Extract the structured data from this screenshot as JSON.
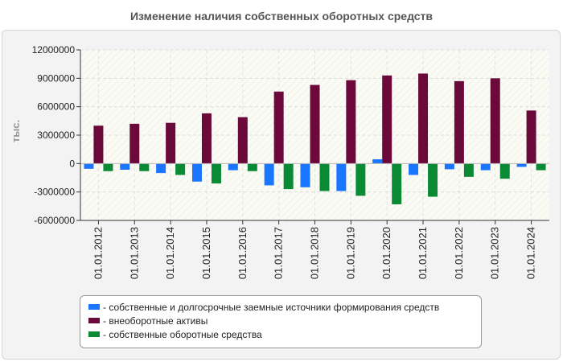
{
  "chart_data": {
    "type": "bar",
    "title": "Изменение наличия собственных оборотных средств",
    "ylabel": "тыс.",
    "xlabel": "",
    "ylim": [
      -6000000,
      12000000
    ],
    "yticks": [
      -6000000,
      -3000000,
      0,
      3000000,
      6000000,
      9000000,
      12000000
    ],
    "ytick_labels": [
      "-6000000",
      "-3000000",
      "0",
      "3000000",
      "6000000",
      "9000000",
      "12000000"
    ],
    "grid": true,
    "legend_position": "bottom",
    "categories": [
      "01.01.2012",
      "01.01.2013",
      "01.01.2014",
      "01.01.2015",
      "01.01.2016",
      "01.01.2017",
      "01.01.2018",
      "01.01.2019",
      "01.01.2020",
      "01.01.2021",
      "01.01.2022",
      "01.01.2023",
      "01.01.2024"
    ],
    "series": [
      {
        "name": "- собственные и долгосрочные заемные источники формирования средств",
        "color": "#1a75ff",
        "values": [
          -550000,
          -650000,
          -1000000,
          -1900000,
          -700000,
          -2300000,
          -2500000,
          -2900000,
          450000,
          -1200000,
          -600000,
          -700000,
          -350000
        ]
      },
      {
        "name": "- внеоборотные активы",
        "color": "#6b0a3a",
        "values": [
          4000000,
          4200000,
          4300000,
          5300000,
          4900000,
          7600000,
          8300000,
          8800000,
          9300000,
          9500000,
          8700000,
          9000000,
          5600000
        ]
      },
      {
        "name": "- собственные оборотные средства",
        "color": "#0b8a35",
        "values": [
          -800000,
          -800000,
          -1200000,
          -2100000,
          -800000,
          -2700000,
          -2900000,
          -3400000,
          -4300000,
          -3500000,
          -1400000,
          -1600000,
          -700000
        ]
      }
    ]
  }
}
